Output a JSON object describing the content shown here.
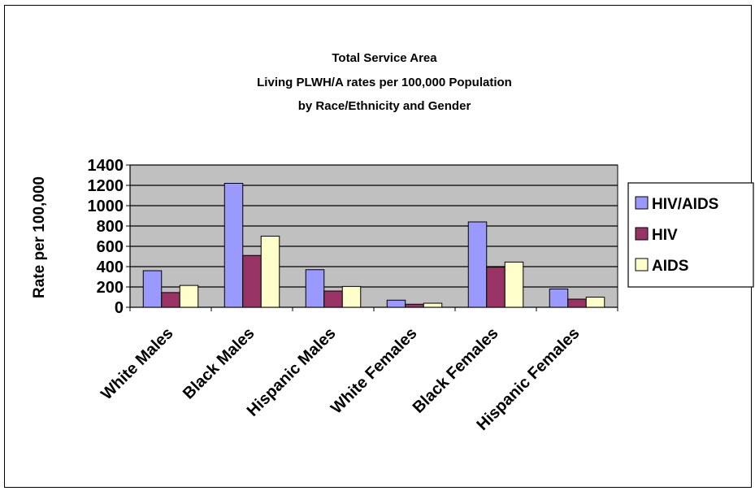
{
  "chart_data": {
    "type": "bar",
    "title_lines": [
      "Total Service Area",
      "Living PLWH/A rates per 100,000 Population",
      "by Race/Ethnicity and Gender"
    ],
    "ylabel": "Rate per 100,000",
    "xlabel": "",
    "ylim": [
      0,
      1400
    ],
    "yticks": [
      0,
      200,
      400,
      600,
      800,
      1000,
      1200,
      1400
    ],
    "grid": true,
    "legend_position": "right",
    "categories": [
      "White Males",
      "Black Males",
      "Hispanic Males",
      "White Females",
      "Black Females",
      "Hispanic Females"
    ],
    "series": [
      {
        "name": "HIV/AIDS",
        "color": "#9999ff",
        "values": [
          360,
          1220,
          370,
          70,
          840,
          180
        ]
      },
      {
        "name": "HIV",
        "color": "#993366",
        "values": [
          145,
          510,
          160,
          30,
          395,
          80
        ]
      },
      {
        "name": "AIDS",
        "color": "#ffffcc",
        "values": [
          215,
          700,
          205,
          40,
          445,
          100
        ]
      }
    ],
    "plot_background": "#c0c0c0"
  }
}
